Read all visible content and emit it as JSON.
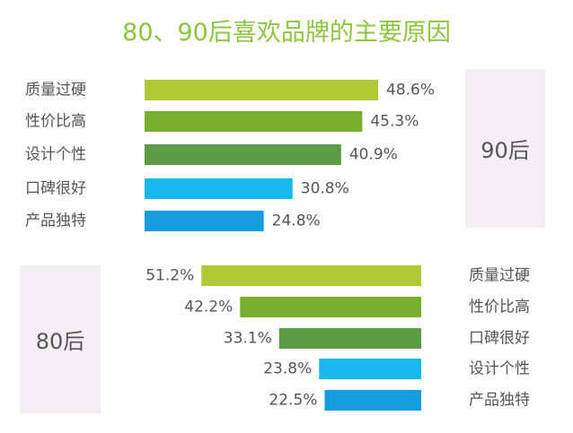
{
  "title": "80、90后喜欢品牌的主要原因",
  "colors": [
    "#b0c935",
    "#78b02e",
    "#5a9d45",
    "#19b9ef",
    "#159de0"
  ],
  "chart_data": [
    {
      "type": "bar",
      "orientation": "horizontal",
      "group_label": "90后",
      "categories": [
        "质量过硬",
        "性价比高",
        "设计个性",
        "口碑很好",
        "产品独特"
      ],
      "values": [
        48.6,
        45.3,
        40.9,
        30.8,
        24.8
      ],
      "value_labels": [
        "48.6%",
        "45.3%",
        "40.9%",
        "30.8%",
        "24.8%"
      ],
      "xlim": [
        0,
        55
      ]
    },
    {
      "type": "bar",
      "orientation": "horizontal",
      "group_label": "80后",
      "categories": [
        "质量过硬",
        "性价比高",
        "口碑很好",
        "设计个性",
        "产品独特"
      ],
      "values": [
        51.2,
        42.2,
        33.1,
        23.8,
        22.5
      ],
      "value_labels": [
        "51.2%",
        "42.2%",
        "33.1%",
        "23.8%",
        "22.5%"
      ],
      "xlim": [
        0,
        55
      ]
    }
  ]
}
